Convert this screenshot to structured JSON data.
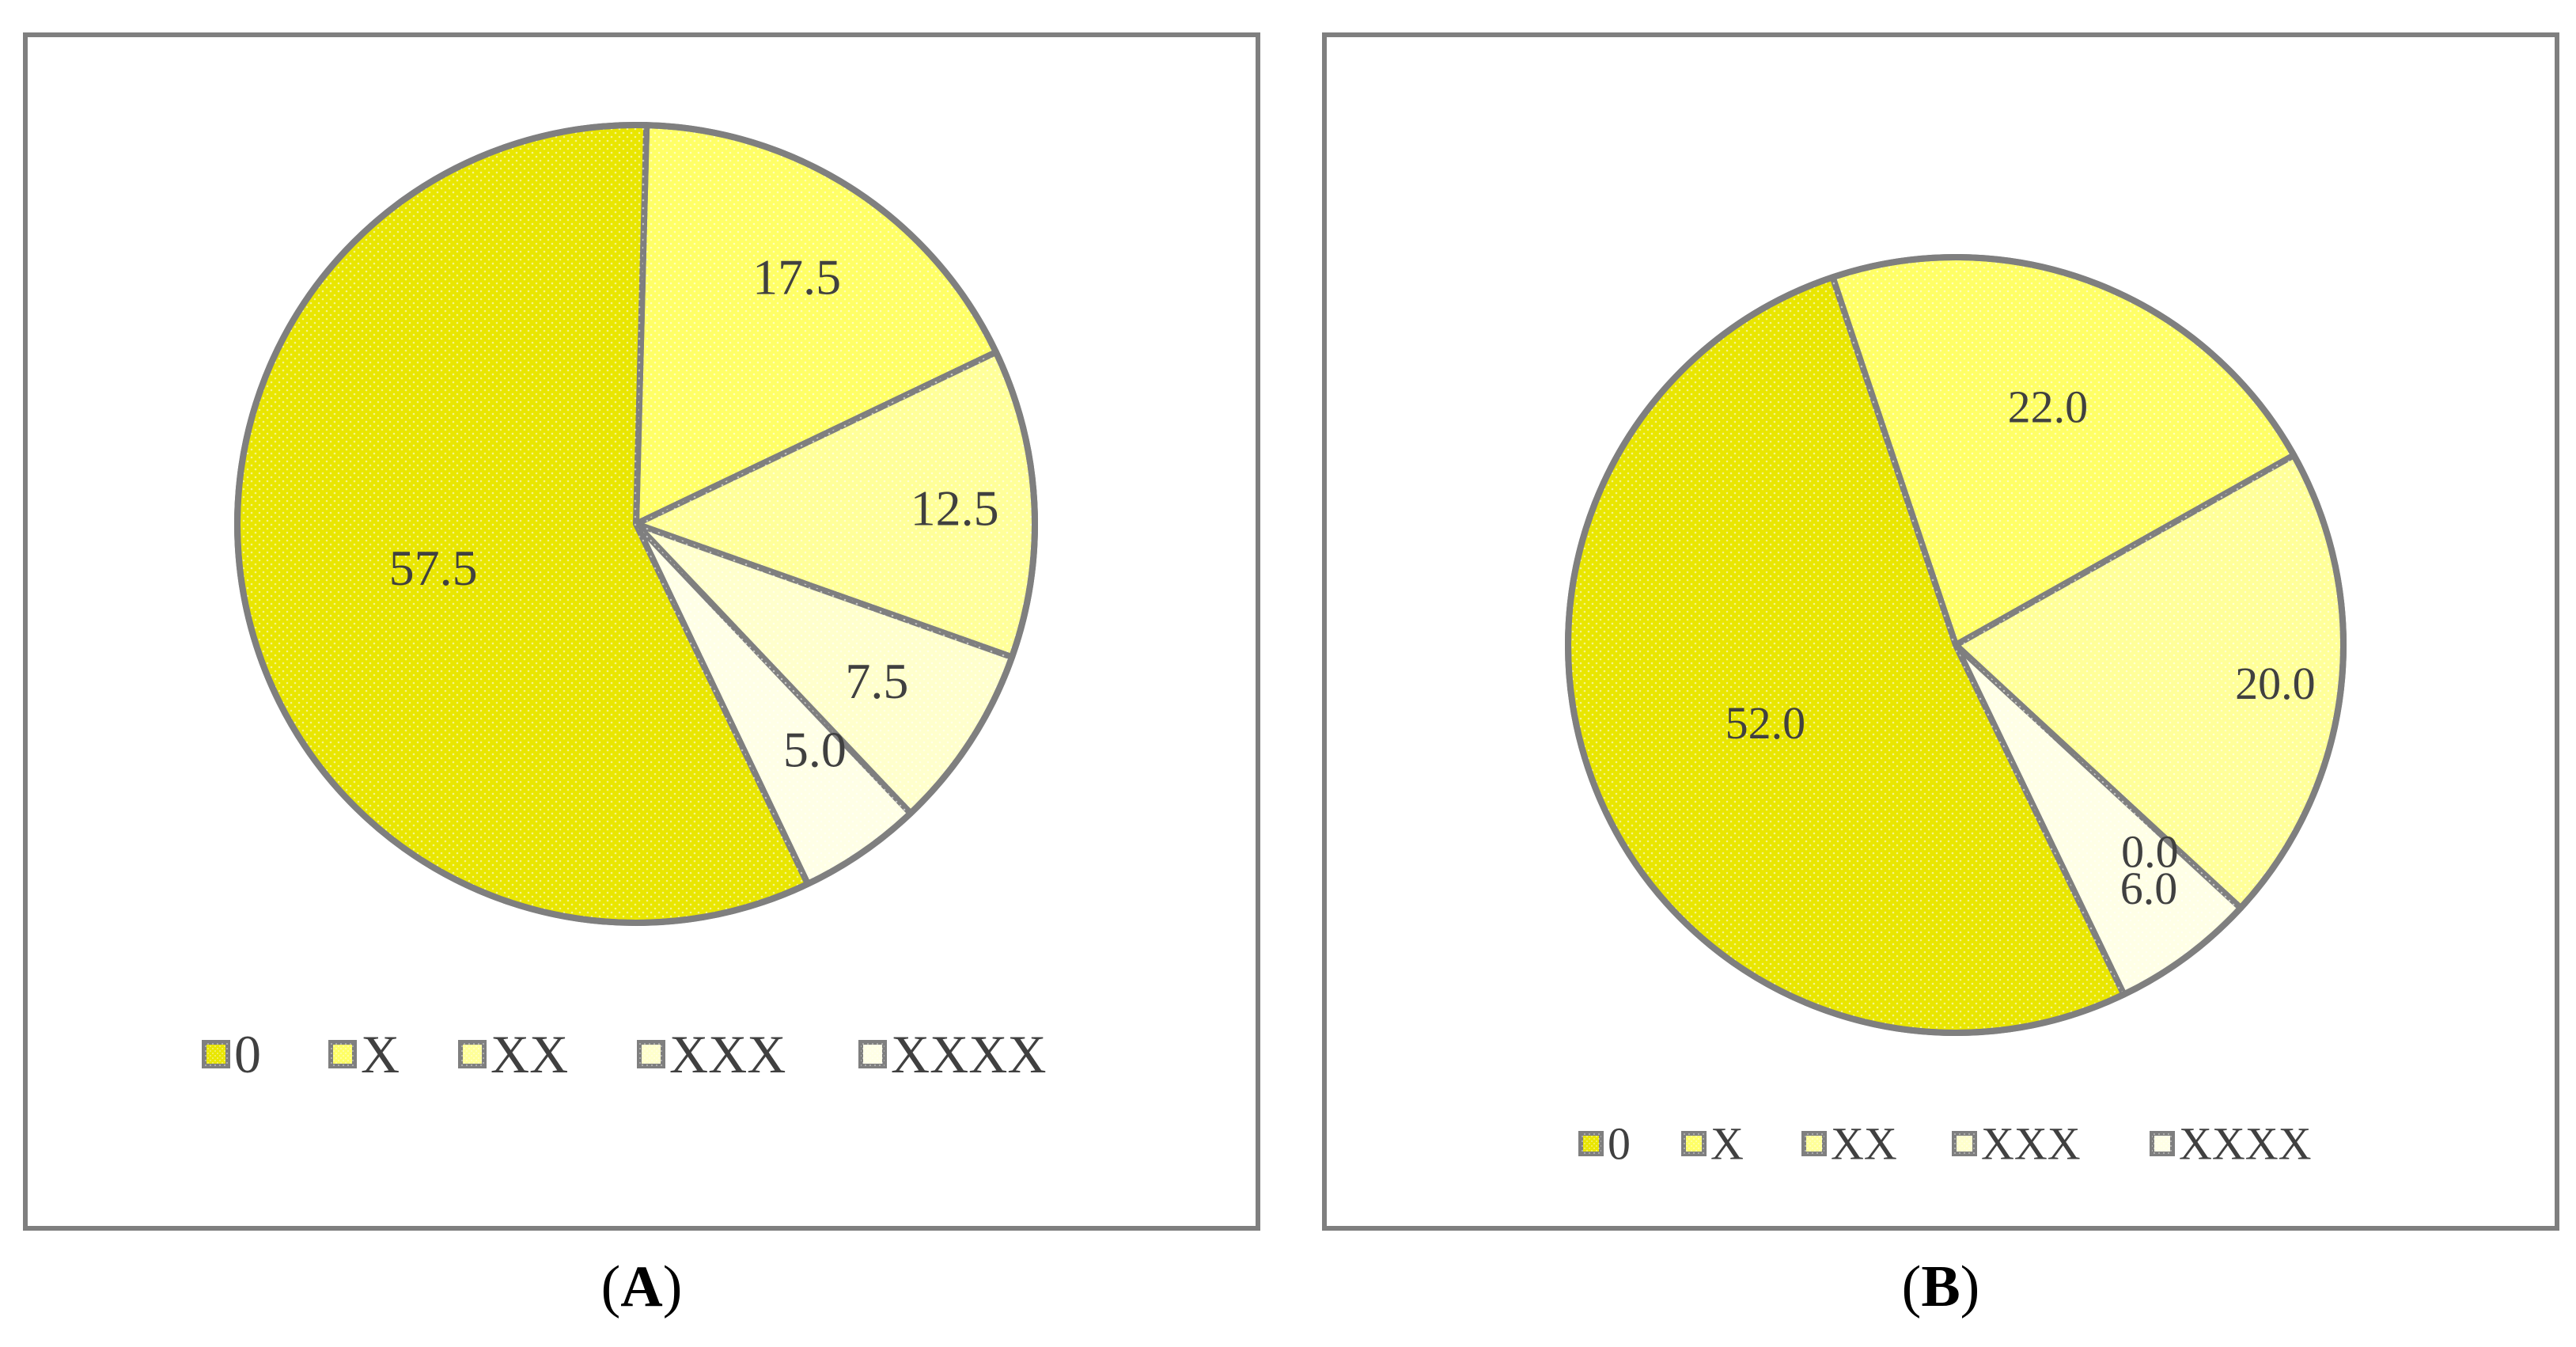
{
  "figure": {
    "panel_labels": [
      "A",
      "B"
    ],
    "colors": {
      "outline": "#7f7f7f",
      "frame": "#7f7f7f",
      "label_text": "#404040",
      "caption_text": "#000000",
      "slice_fills": [
        "#e9e600",
        "#ffff66",
        "#ffff99",
        "#ffffcc",
        "#ffffe6"
      ],
      "dot_color": "#ffffff"
    }
  },
  "chart_data": [
    {
      "type": "pie",
      "panel": "A",
      "categories": [
        "0",
        "X",
        "XX",
        "XXX",
        "XXXX"
      ],
      "values": [
        57.5,
        17.5,
        12.5,
        7.5,
        5.0
      ],
      "data_labels": [
        "57.5",
        "17.5",
        "12.5",
        "7.5",
        "5.0"
      ],
      "legend": [
        "0",
        "X",
        "XX",
        "XXX",
        "XXXX"
      ],
      "legend_position": "bottom",
      "title": ""
    },
    {
      "type": "pie",
      "panel": "B",
      "categories": [
        "0",
        "X",
        "XX",
        "XXX",
        "XXXX"
      ],
      "values": [
        52.0,
        22.0,
        20.0,
        0.0,
        6.0
      ],
      "data_labels": [
        "52.0",
        "22.0",
        "20.0",
        "0.0",
        "6.0"
      ],
      "legend": [
        "0",
        "X",
        "XX",
        "XXX",
        "XXXX"
      ],
      "legend_position": "bottom",
      "title": ""
    }
  ]
}
